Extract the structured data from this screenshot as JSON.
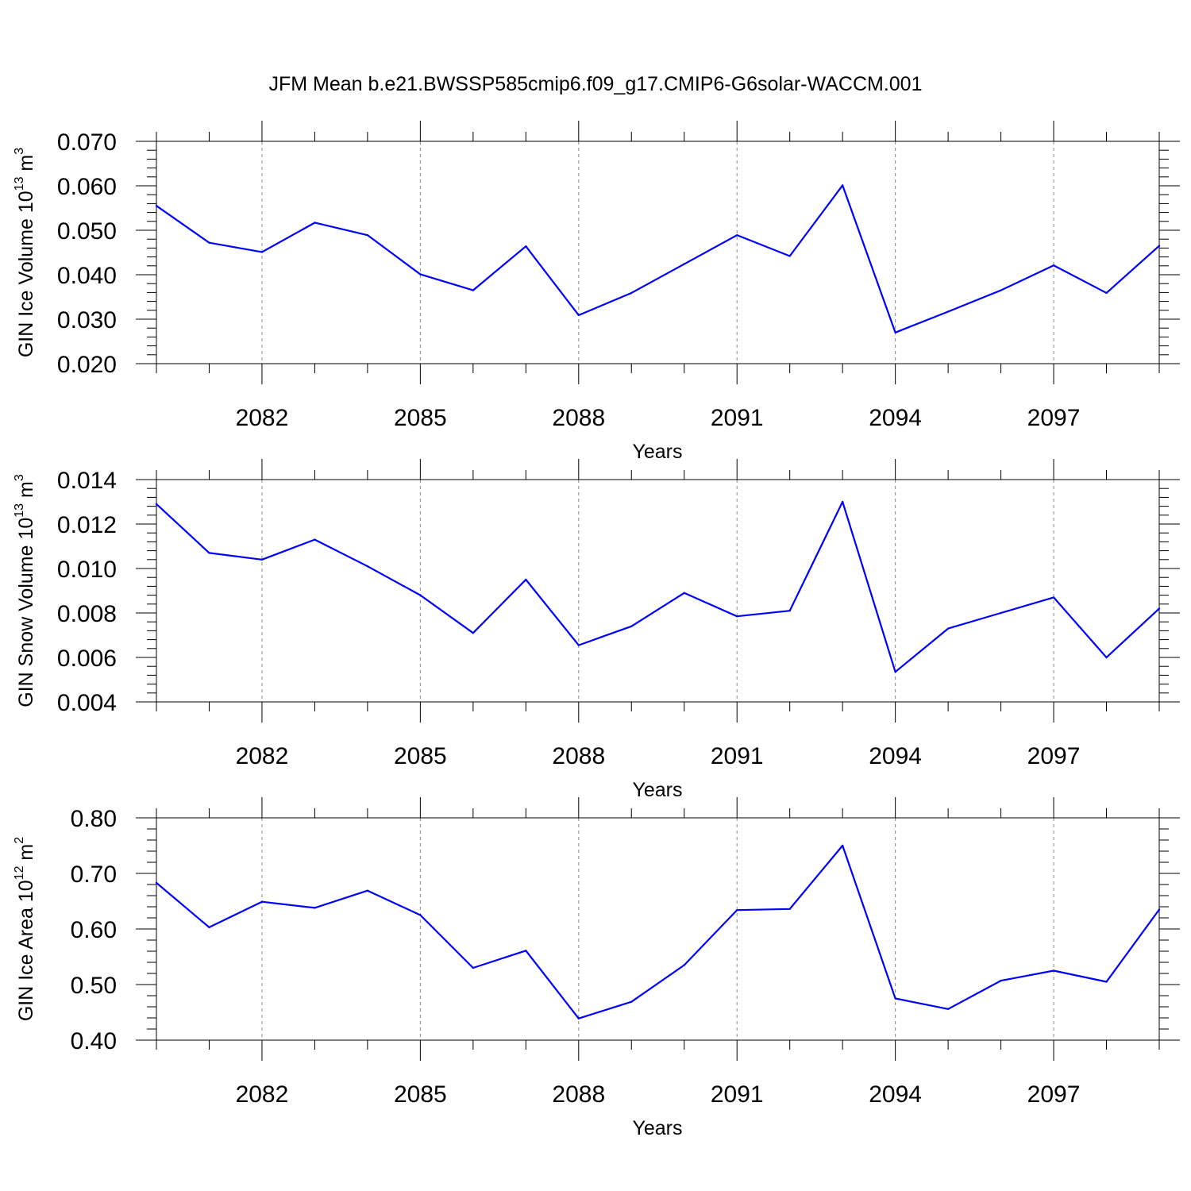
{
  "figure": {
    "title": "JFM Mean b.e21.BWSSP585cmip6.f09_g17.CMIP6-G6solar-WACCM.001"
  },
  "colors": {
    "line": "#0000ff",
    "axis": "#000000",
    "grid": "#888888"
  },
  "chart_data": [
    {
      "type": "line",
      "name": "ice-volume",
      "title": "",
      "xlabel": "Years",
      "ylabel": {
        "prefix": "GIN Ice Volume 10",
        "exp": "13",
        "unit": " m",
        "unit_exp": "3"
      },
      "x": [
        2080,
        2081,
        2082,
        2083,
        2084,
        2085,
        2086,
        2087,
        2088,
        2089,
        2090,
        2091,
        2092,
        2093,
        2094,
        2095,
        2096,
        2097,
        2098,
        2099
      ],
      "values": [
        0.0555,
        0.0472,
        0.0451,
        0.0517,
        0.0489,
        0.0401,
        0.0365,
        0.0464,
        0.0309,
        0.0359,
        0.0424,
        0.0489,
        0.0442,
        0.0601,
        0.027,
        0.0317,
        0.0365,
        0.0421,
        0.0359,
        0.0465
      ],
      "xlim": [
        2080,
        2099
      ],
      "ylim": [
        0.02,
        0.07
      ],
      "yticks": [
        0.02,
        0.03,
        0.04,
        0.05,
        0.06,
        0.07
      ],
      "ytick_labels": [
        "0.020",
        "0.030",
        "0.040",
        "0.050",
        "0.060",
        "0.070"
      ],
      "xticks": [
        2082,
        2085,
        2088,
        2091,
        2094,
        2097
      ],
      "xtick_labels": [
        "2082",
        "2085",
        "2088",
        "2091",
        "2094",
        "2097"
      ],
      "grid": "vertical dashed at major x ticks"
    },
    {
      "type": "line",
      "name": "snow-volume",
      "title": "",
      "xlabel": "Years",
      "ylabel": {
        "prefix": "GIN Snow Volume 10",
        "exp": "13",
        "unit": " m",
        "unit_exp": "3"
      },
      "x": [
        2080,
        2081,
        2082,
        2083,
        2084,
        2085,
        2086,
        2087,
        2088,
        2089,
        2090,
        2091,
        2092,
        2093,
        2094,
        2095,
        2096,
        2097,
        2098,
        2099
      ],
      "values": [
        0.0129,
        0.0107,
        0.0104,
        0.0113,
        0.0101,
        0.0088,
        0.0071,
        0.0095,
        0.00655,
        0.0074,
        0.0089,
        0.00785,
        0.0081,
        0.013,
        0.00535,
        0.0073,
        0.008,
        0.0087,
        0.006,
        0.0082
      ],
      "xlim": [
        2080,
        2099
      ],
      "ylim": [
        0.004,
        0.014
      ],
      "yticks": [
        0.004,
        0.006,
        0.008,
        0.01,
        0.012,
        0.014
      ],
      "ytick_labels": [
        "0.004",
        "0.006",
        "0.008",
        "0.010",
        "0.012",
        "0.014"
      ],
      "xticks": [
        2082,
        2085,
        2088,
        2091,
        2094,
        2097
      ],
      "xtick_labels": [
        "2082",
        "2085",
        "2088",
        "2091",
        "2094",
        "2097"
      ],
      "grid": "vertical dashed at major x ticks"
    },
    {
      "type": "line",
      "name": "ice-area",
      "title": "",
      "xlabel": "Years",
      "ylabel": {
        "prefix": "GIN Ice Area 10",
        "exp": "12",
        "unit": " m",
        "unit_exp": "2"
      },
      "x": [
        2080,
        2081,
        2082,
        2083,
        2084,
        2085,
        2086,
        2087,
        2088,
        2089,
        2090,
        2091,
        2092,
        2093,
        2094,
        2095,
        2096,
        2097,
        2098,
        2099
      ],
      "values": [
        0.683,
        0.603,
        0.649,
        0.638,
        0.669,
        0.625,
        0.53,
        0.561,
        0.439,
        0.469,
        0.535,
        0.634,
        0.636,
        0.75,
        0.475,
        0.456,
        0.507,
        0.525,
        0.505,
        0.635
      ],
      "xlim": [
        2080,
        2099
      ],
      "ylim": [
        0.4,
        0.8
      ],
      "yticks": [
        0.4,
        0.5,
        0.6,
        0.7,
        0.8
      ],
      "ytick_labels": [
        "0.40",
        "0.50",
        "0.60",
        "0.70",
        "0.80"
      ],
      "xticks": [
        2082,
        2085,
        2088,
        2091,
        2094,
        2097
      ],
      "xtick_labels": [
        "2082",
        "2085",
        "2088",
        "2091",
        "2094",
        "2097"
      ],
      "grid": "vertical dashed at major x ticks"
    }
  ]
}
